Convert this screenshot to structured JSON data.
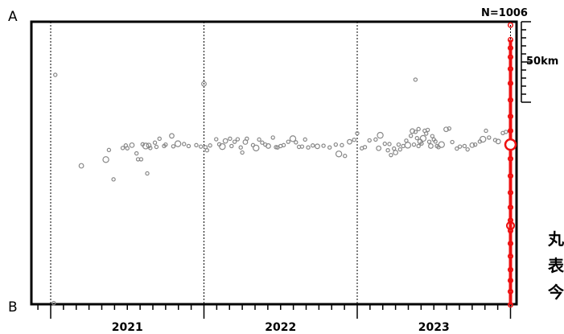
{
  "chart_data": {
    "type": "scatter",
    "title": "",
    "count_label": "N=1006",
    "top_label": "A",
    "bottom_label": "B",
    "scale_bar_label": "50km",
    "xlabel": "",
    "ylabel": "",
    "x_ticks": [
      "2021",
      "2022",
      "2023"
    ],
    "x_range": [
      2020.8,
      2023.99
    ],
    "y_range": [
      0,
      100
    ],
    "y_meaning": "relative position along cross-section (0 = B, 100 = A)",
    "year_boundaries": [
      2021.0,
      2022.0,
      2023.0,
      2024.0
    ],
    "colors": {
      "past_events": "#888888",
      "recent_events": "#ee1111",
      "recent_large_fill": "#ffffff"
    },
    "series": [
      {
        "points": [
          [
            2021.02,
            0.4
          ],
          [
            2021.03,
            81.2
          ],
          [
            2021.2,
            49.0
          ],
          [
            2021.36,
            51.2
          ],
          [
            2021.38,
            54.6
          ],
          [
            2021.41,
            44.2
          ],
          [
            2021.47,
            55.3
          ],
          [
            2021.49,
            56.2
          ],
          [
            2021.5,
            55.2
          ],
          [
            2021.53,
            56.3
          ],
          [
            2021.56,
            53.4
          ],
          [
            2021.57,
            51.3
          ],
          [
            2021.59,
            51.3
          ],
          [
            2021.6,
            56.6
          ],
          [
            2021.62,
            56.0
          ],
          [
            2021.63,
            46.3
          ],
          [
            2021.64,
            56.2
          ],
          [
            2021.65,
            55.3
          ],
          [
            2021.68,
            57.2
          ],
          [
            2021.69,
            55.7
          ],
          [
            2021.71,
            58.6
          ],
          [
            2021.74,
            56.0
          ],
          [
            2021.75,
            56.5
          ],
          [
            2021.79,
            59.6
          ],
          [
            2021.8,
            55.9
          ],
          [
            2021.83,
            56.8
          ],
          [
            2021.87,
            56.7
          ],
          [
            2021.9,
            56.0
          ],
          [
            2021.95,
            56.3
          ],
          [
            2021.98,
            55.8
          ],
          [
            2022.0,
            78.0
          ],
          [
            2022.01,
            55.6
          ],
          [
            2022.02,
            54.5
          ],
          [
            2022.04,
            56.2
          ],
          [
            2022.08,
            58.4
          ],
          [
            2022.1,
            56.6
          ],
          [
            2022.12,
            55.8
          ],
          [
            2022.14,
            57.8
          ],
          [
            2022.17,
            58.6
          ],
          [
            2022.18,
            56.0
          ],
          [
            2022.2,
            57.5
          ],
          [
            2022.22,
            58.4
          ],
          [
            2022.24,
            55.5
          ],
          [
            2022.25,
            53.7
          ],
          [
            2022.27,
            57.4
          ],
          [
            2022.28,
            58.6
          ],
          [
            2022.32,
            56.3
          ],
          [
            2022.34,
            55.3
          ],
          [
            2022.36,
            58.3
          ],
          [
            2022.38,
            57.2
          ],
          [
            2022.4,
            56.5
          ],
          [
            2022.42,
            56.0
          ],
          [
            2022.45,
            59.0
          ],
          [
            2022.47,
            55.6
          ],
          [
            2022.48,
            55.5
          ],
          [
            2022.5,
            56.0
          ],
          [
            2022.52,
            56.3
          ],
          [
            2022.55,
            57.5
          ],
          [
            2022.58,
            58.6
          ],
          [
            2022.6,
            57.3
          ],
          [
            2022.62,
            55.7
          ],
          [
            2022.64,
            55.8
          ],
          [
            2022.66,
            58.3
          ],
          [
            2022.68,
            55.5
          ],
          [
            2022.71,
            56.2
          ],
          [
            2022.74,
            55.9
          ],
          [
            2022.78,
            56.1
          ],
          [
            2022.82,
            55.5
          ],
          [
            2022.86,
            56.5
          ],
          [
            2022.88,
            53.2
          ],
          [
            2022.9,
            56.3
          ],
          [
            2022.92,
            52.5
          ],
          [
            2022.95,
            57.5
          ],
          [
            2022.98,
            58.2
          ],
          [
            2023.0,
            60.5
          ],
          [
            2023.03,
            55.2
          ],
          [
            2023.05,
            55.6
          ],
          [
            2023.08,
            58.0
          ],
          [
            2023.12,
            58.3
          ],
          [
            2023.14,
            55.2
          ],
          [
            2023.15,
            59.8
          ],
          [
            2023.18,
            56.8
          ],
          [
            2023.2,
            54.5
          ],
          [
            2023.21,
            56.7
          ],
          [
            2023.22,
            52.8
          ],
          [
            2023.24,
            55.1
          ],
          [
            2023.25,
            53.7
          ],
          [
            2023.27,
            56.5
          ],
          [
            2023.28,
            54.8
          ],
          [
            2023.3,
            56.0
          ],
          [
            2023.32,
            57.9
          ],
          [
            2023.33,
            56.3
          ],
          [
            2023.35,
            59.6
          ],
          [
            2023.36,
            61.3
          ],
          [
            2023.37,
            56.5
          ],
          [
            2023.38,
            79.5
          ],
          [
            2023.38,
            61.0
          ],
          [
            2023.39,
            58.8
          ],
          [
            2023.4,
            62.0
          ],
          [
            2023.4,
            56.0
          ],
          [
            2023.41,
            57.6
          ],
          [
            2023.42,
            56.9
          ],
          [
            2023.43,
            58.7
          ],
          [
            2023.44,
            61.4
          ],
          [
            2023.45,
            60.4
          ],
          [
            2023.46,
            61.7
          ],
          [
            2023.47,
            57.5
          ],
          [
            2023.48,
            56.0
          ],
          [
            2023.49,
            59.5
          ],
          [
            2023.5,
            58.3
          ],
          [
            2023.51,
            57.6
          ],
          [
            2023.52,
            56.0
          ],
          [
            2023.53,
            55.6
          ],
          [
            2023.55,
            56.5
          ],
          [
            2023.58,
            61.9
          ],
          [
            2023.6,
            62.2
          ],
          [
            2023.62,
            57.4
          ],
          [
            2023.65,
            55.1
          ],
          [
            2023.67,
            55.8
          ],
          [
            2023.7,
            56.0
          ],
          [
            2023.72,
            54.8
          ],
          [
            2023.75,
            56.3
          ],
          [
            2023.77,
            56.5
          ],
          [
            2023.8,
            57.6
          ],
          [
            2023.82,
            58.4
          ],
          [
            2023.84,
            61.4
          ],
          [
            2023.86,
            59.0
          ],
          [
            2023.9,
            58.1
          ],
          [
            2023.92,
            57.6
          ],
          [
            2023.95,
            60.6
          ],
          [
            2023.97,
            61.0
          ]
        ],
        "sizes": "mostly small (M<2), few medium"
      },
      {
        "points": [
          [
            2024.0,
            98.8
          ],
          [
            2024.0,
            93.6
          ],
          [
            2024.0,
            90.7
          ],
          [
            2024.0,
            87.5
          ],
          [
            2024.0,
            83.3
          ],
          [
            2024.0,
            78.2
          ],
          [
            2024.0,
            72.3
          ],
          [
            2024.0,
            66.5
          ],
          [
            2024.0,
            61.4
          ],
          [
            2024.0,
            57.4
          ],
          [
            2024.0,
            51.5
          ],
          [
            2024.0,
            45.4
          ],
          [
            2024.0,
            39.5
          ],
          [
            2024.0,
            34.3
          ],
          [
            2024.0,
            29.7
          ],
          [
            2024.0,
            26.0
          ],
          [
            2024.0,
            21.5
          ],
          [
            2024.0,
            17.0
          ],
          [
            2024.0,
            12.2
          ],
          [
            2024.0,
            8.4
          ],
          [
            2024.0,
            4.5
          ],
          [
            2024.0,
            -0.2
          ]
        ],
        "large_event": [
          2024.0,
          56.5
        ],
        "medium_event": [
          2024.0,
          27.8
        ]
      }
    ],
    "annotation_glyphs": [
      "丸",
      "表",
      "今"
    ],
    "grid": false,
    "legend": "none"
  }
}
